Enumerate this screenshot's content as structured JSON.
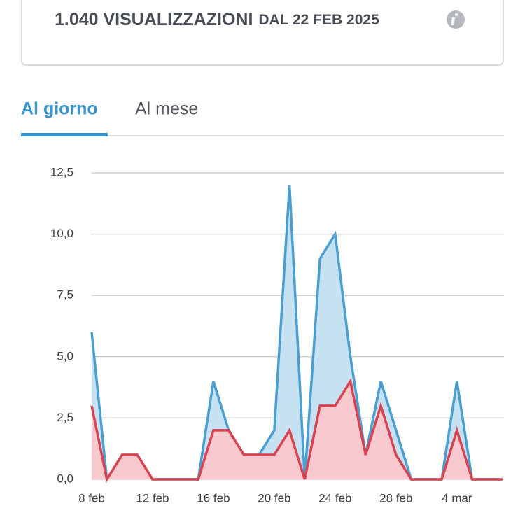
{
  "header": {
    "count": "1.040 VISUALIZZAZIONI",
    "since": "DAL 22 FEB 2025"
  },
  "tabs": [
    "Al giorno",
    "Al mese"
  ],
  "chart_data": {
    "type": "area",
    "categories": [
      "8 feb",
      null,
      null,
      null,
      "12 feb",
      null,
      null,
      null,
      "16 feb",
      null,
      null,
      null,
      "20 feb",
      null,
      null,
      null,
      "24 feb",
      null,
      null,
      null,
      "28 feb",
      null,
      null,
      null,
      "4 mar",
      null,
      null,
      null
    ],
    "series": [
      {
        "color": "#4a9fd0",
        "fill": "#c6e1f2",
        "values": [
          6,
          0,
          1,
          1,
          0,
          0,
          0,
          0,
          4,
          2,
          1,
          1,
          2,
          12,
          0,
          9,
          10,
          5,
          1,
          4,
          2,
          0,
          0,
          0,
          4,
          0,
          0,
          0
        ]
      },
      {
        "color": "#d9434f",
        "fill": "#f7c8cd",
        "values": [
          3,
          0,
          1,
          1,
          0,
          0,
          0,
          0,
          2,
          2,
          1,
          1,
          1,
          2,
          0,
          3,
          3,
          4,
          1,
          3,
          1,
          0,
          0,
          0,
          2,
          0,
          0,
          0
        ]
      }
    ],
    "ylim": [
      0,
      12.5
    ],
    "yticks": [
      {
        "value": 0,
        "label": "0,0"
      },
      {
        "value": 2.5,
        "label": "2,5"
      },
      {
        "value": 5,
        "label": "5,0"
      },
      {
        "value": 7.5,
        "label": "7,5"
      },
      {
        "value": 10,
        "label": "10,0"
      },
      {
        "value": 12.5,
        "label": "12,5"
      }
    ],
    "grid": true
  }
}
